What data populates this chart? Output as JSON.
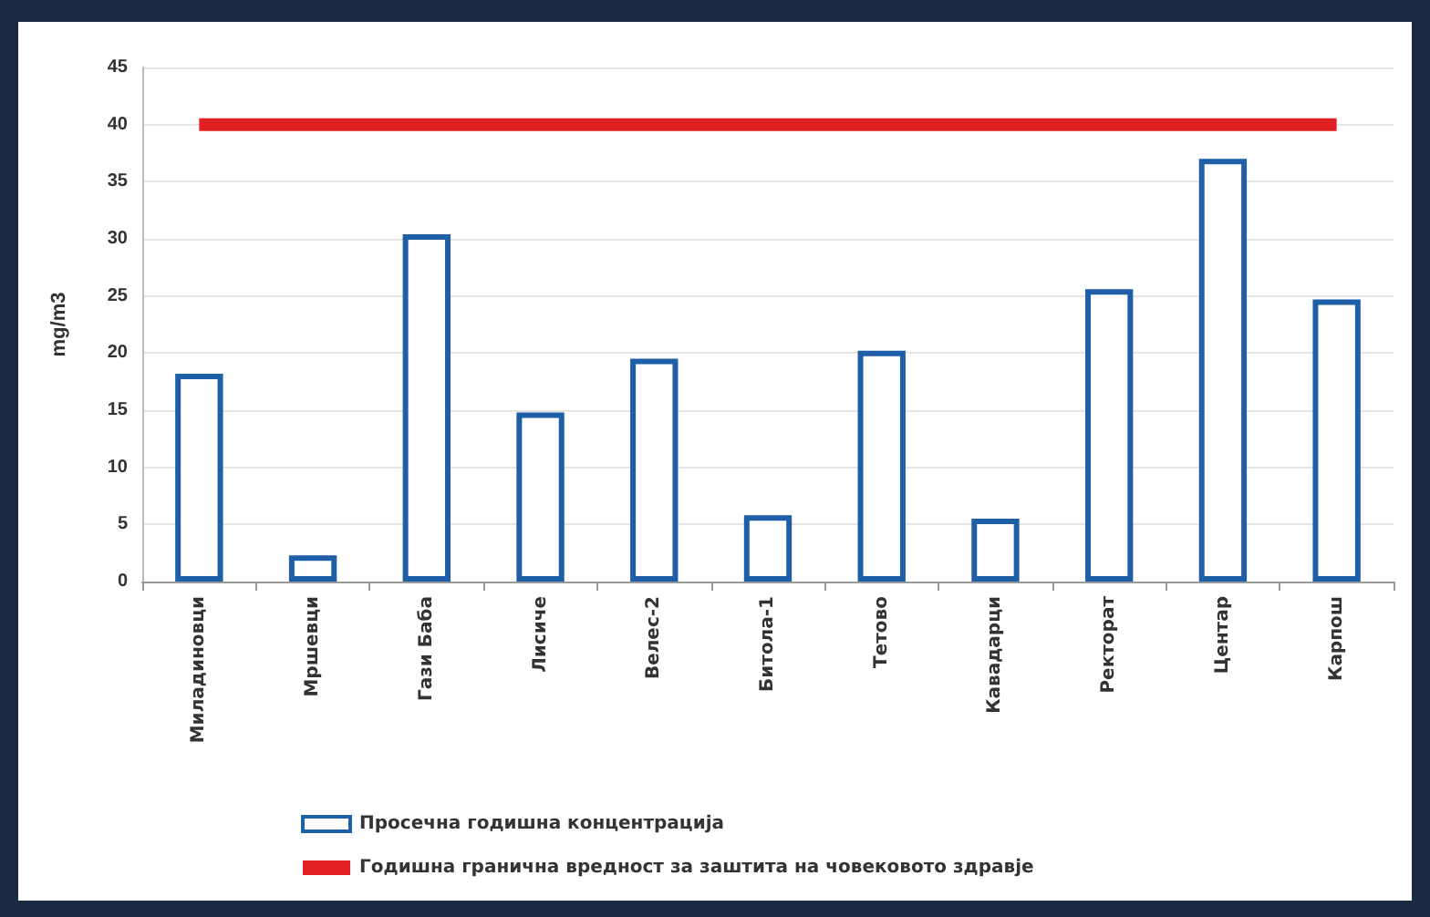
{
  "chart_data": {
    "type": "bar",
    "ylabel": "mg/m3",
    "categories": [
      "Миладиновци",
      "Мршевци",
      "Гази Баба",
      "Лисиче",
      "Велес-2",
      "Битола-1",
      "Тетово",
      "Кавадарци",
      "Ректорат",
      "Центар",
      "Карпош"
    ],
    "series": [
      {
        "name": "Просечна годишна концентрација",
        "color": "#1f5fa8",
        "values": [
          18.2,
          2.3,
          30.4,
          14.8,
          19.5,
          5.8,
          20.2,
          5.5,
          25.6,
          37,
          24.7
        ]
      },
      {
        "name": "Годишна гранична вредност за заштита на човековото здравје",
        "type": "line",
        "color": "#e02020",
        "values": [
          40,
          40,
          40,
          40,
          40,
          40,
          40,
          40,
          40,
          40,
          40
        ]
      }
    ],
    "ylim": [
      0,
      45
    ],
    "yticks": [
      0,
      5,
      10,
      15,
      20,
      25,
      30,
      35,
      40,
      45
    ],
    "grid": "y",
    "legend": "bottom",
    "marker": "none"
  }
}
